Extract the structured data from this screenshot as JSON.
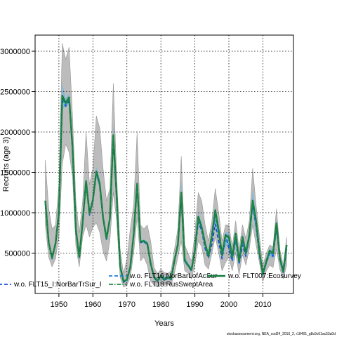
{
  "chart_data": {
    "type": "line",
    "xlabel": "Years",
    "ylabel": "Recruits (age 3)",
    "xlim": [
      1943,
      2019
    ],
    "ylim": [
      0,
      3200000
    ],
    "x_ticks": [
      1950,
      1960,
      1970,
      1980,
      1990,
      2000,
      2010
    ],
    "y_ticks": [
      500000,
      1000000,
      1500000,
      2000000,
      2500000,
      3000000
    ],
    "y_tick_labels": [
      "500000",
      "1000000",
      "1500000",
      "2000000",
      "2500000",
      "3000000"
    ],
    "grid": true,
    "legend_position": "bottom",
    "years": [
      1946,
      1947,
      1948,
      1949,
      1950,
      1951,
      1952,
      1953,
      1954,
      1955,
      1956,
      1957,
      1958,
      1959,
      1960,
      1961,
      1962,
      1963,
      1964,
      1965,
      1966,
      1967,
      1968,
      1969,
      1970,
      1971,
      1972,
      1973,
      1974,
      1975,
      1976,
      1977,
      1978,
      1979,
      1980,
      1981,
      1982,
      1983,
      1984,
      1985,
      1986,
      1987,
      1988,
      1989,
      1990,
      1991,
      1992,
      1993,
      1994,
      1995,
      1996,
      1997,
      1998,
      1999,
      2000,
      2001,
      2002,
      2003,
      2004,
      2005,
      2006,
      2007,
      2008,
      2009,
      2010,
      2011,
      2012,
      2013,
      2014,
      2015,
      2016,
      2017
    ],
    "band_grey": {
      "lower": [
        850000,
        450000,
        330000,
        430000,
        700000,
        1600000,
        1850000,
        1750000,
        1450000,
        580000,
        330000,
        700000,
        850000,
        700000,
        820000,
        870000,
        760000,
        520000,
        400000,
        650000,
        1250000,
        900000,
        200000,
        80000,
        100000,
        200000,
        500000,
        950000,
        400000,
        450000,
        350000,
        150000,
        100000,
        80000,
        120000,
        100000,
        130000,
        100000,
        250000,
        450000,
        650000,
        280000,
        250000,
        180000,
        350000,
        650000,
        580000,
        350000,
        300000,
        500000,
        700000,
        500000,
        280000,
        380000,
        450000,
        280000,
        500000,
        230000,
        480000,
        350000,
        550000,
        850000,
        600000,
        380000,
        150000,
        280000,
        350000,
        320000,
        550000,
        300000,
        180000,
        350000
      ],
      "upper": [
        1650000,
        1050000,
        800000,
        850000,
        1350000,
        3100000,
        2900000,
        3050000,
        2200000,
        1150000,
        750000,
        1150000,
        2000000,
        1350000,
        1550000,
        2200000,
        2050000,
        1550000,
        1150000,
        1300000,
        2600000,
        1450000,
        550000,
        250000,
        420000,
        800000,
        1100000,
        2000000,
        850000,
        800000,
        850000,
        650000,
        320000,
        250000,
        300000,
        260000,
        250000,
        280000,
        550000,
        800000,
        1700000,
        600000,
        500000,
        400000,
        750000,
        1250000,
        1150000,
        850000,
        650000,
        900000,
        1300000,
        1000000,
        650000,
        850000,
        850000,
        580000,
        900000,
        550000,
        850000,
        680000,
        900000,
        1550000,
        1100000,
        700000,
        350000,
        500000,
        600000,
        580000,
        1050000,
        550000,
        350000,
        700000
      ]
    },
    "band_blue": {
      "lower": [
        1100000,
        600000,
        420000,
        600000,
        950000,
        2300000,
        2300000,
        2350000,
        1750000,
        750000,
        420000,
        850000,
        1300000,
        950000,
        1100000,
        1450000,
        1300000,
        900000,
        650000,
        900000,
        1900000,
        1150000,
        320000,
        130000,
        150000,
        300000,
        700000,
        1300000,
        620000,
        620000,
        600000,
        350000,
        180000,
        140000,
        200000,
        150000,
        180000,
        160000,
        380000,
        580000,
        1150000,
        380000,
        330000,
        260000,
        500000,
        870000,
        760000,
        560000,
        420000,
        650000,
        900000,
        680000,
        420000,
        580000,
        600000,
        380000,
        620000,
        330000,
        600000,
        450000,
        650000,
        1000000,
        750000,
        430000,
        200000,
        350000,
        460000,
        430000,
        750000,
        370000,
        230000,
        480000
      ],
      "upper": [
        1200000,
        660000,
        460000,
        640000,
        1050000,
        2600000,
        2420000,
        2480000,
        1870000,
        830000,
        460000,
        930000,
        1450000,
        1030000,
        1190000,
        1570000,
        1430000,
        990000,
        710000,
        980000,
        2070000,
        1250000,
        360000,
        160000,
        190000,
        360000,
        780000,
        1420000,
        660000,
        670000,
        650000,
        400000,
        220000,
        180000,
        240000,
        200000,
        230000,
        200000,
        440000,
        640000,
        1400000,
        460000,
        390000,
        320000,
        580000,
        1000000,
        880000,
        660000,
        520000,
        760000,
        1080000,
        860000,
        540000,
        760000,
        760000,
        500000,
        780000,
        480000,
        750000,
        560000,
        780000,
        1300000,
        980000,
        600000,
        270000,
        440000,
        560000,
        540000,
        920000,
        470000,
        300000,
        620000
      ]
    },
    "series": [
      {
        "name": "w.o. FLT15_I:NorBarTrSur_I",
        "color": "#1a4fd6",
        "dash": "dash",
        "values": [
          1130000,
          620000,
          430000,
          610000,
          980000,
          2380000,
          2320000,
          2390000,
          1790000,
          780000,
          440000,
          880000,
          1360000,
          970000,
          1140000,
          1490000,
          1340000,
          930000,
          670000,
          920000,
          1940000,
          1180000,
          330000,
          140000,
          160000,
          320000,
          720000,
          1340000,
          630000,
          640000,
          610000,
          360000,
          190000,
          150000,
          210000,
          160000,
          190000,
          170000,
          400000,
          600000,
          1200000,
          400000,
          340000,
          280000,
          520000,
          880000,
          780000,
          560000,
          440000,
          610000,
          860000,
          640000,
          430000,
          740000,
          560000,
          400000,
          720000,
          360000,
          600000,
          460000,
          700000,
          1100000,
          840000,
          470000,
          230000,
          380000,
          500000,
          460000,
          820000,
          420000,
          250000,
          550000
        ]
      },
      {
        "name": "w.o. FLT16:NorBarLofAcSur",
        "color": "#1a7fd6",
        "dash": "dash",
        "values": [
          1140000,
          625000,
          440000,
          615000,
          990000,
          2420000,
          2340000,
          2410000,
          1800000,
          785000,
          445000,
          890000,
          1380000,
          980000,
          1150000,
          1500000,
          1350000,
          940000,
          675000,
          925000,
          1950000,
          1190000,
          335000,
          145000,
          165000,
          325000,
          725000,
          1350000,
          635000,
          645000,
          615000,
          365000,
          195000,
          155000,
          215000,
          165000,
          195000,
          175000,
          405000,
          605000,
          1220000,
          405000,
          345000,
          285000,
          530000,
          920000,
          800000,
          590000,
          450000,
          690000,
          960000,
          740000,
          470000,
          650000,
          640000,
          410000,
          650000,
          370000,
          660000,
          480000,
          700000,
          1120000,
          870000,
          490000,
          240000,
          390000,
          510000,
          480000,
          850000,
          430000,
          260000,
          560000
        ]
      },
      {
        "name": "w.o. FLT007:Ecosurvey",
        "color": "#127a3a",
        "dash": "solid",
        "values": [
          1150000,
          630000,
          440000,
          620000,
          1000000,
          2450000,
          2360000,
          2430000,
          1810000,
          790000,
          450000,
          890000,
          1390000,
          990000,
          1160000,
          1510000,
          1360000,
          940000,
          680000,
          930000,
          1960000,
          1200000,
          340000,
          150000,
          170000,
          330000,
          730000,
          1360000,
          640000,
          650000,
          620000,
          370000,
          200000,
          160000,
          220000,
          170000,
          200000,
          180000,
          410000,
          610000,
          1250000,
          410000,
          350000,
          290000,
          540000,
          950000,
          820000,
          620000,
          460000,
          720000,
          1030000,
          780000,
          480000,
          720000,
          700000,
          450000,
          740000,
          400000,
          700000,
          500000,
          720000,
          1150000,
          900000,
          510000,
          240000,
          400000,
          530000,
          500000,
          870000,
          440000,
          270000,
          600000
        ]
      },
      {
        "name": "w.o. FLT18:RusSweptArea",
        "color": "#1f8a4c",
        "dash": "dashdot",
        "values": [
          1145000,
          628000,
          438000,
          618000,
          995000,
          2440000,
          2350000,
          2420000,
          1805000,
          788000,
          448000,
          888000,
          1385000,
          985000,
          1155000,
          1505000,
          1355000,
          938000,
          678000,
          928000,
          1955000,
          1195000,
          338000,
          148000,
          168000,
          328000,
          728000,
          1355000,
          638000,
          648000,
          618000,
          368000,
          198000,
          158000,
          218000,
          168000,
          198000,
          178000,
          408000,
          608000,
          1240000,
          408000,
          348000,
          288000,
          536000,
          940000,
          810000,
          610000,
          455000,
          710000,
          1010000,
          770000,
          475000,
          710000,
          690000,
          445000,
          730000,
          395000,
          690000,
          495000,
          715000,
          1140000,
          890000,
          505000,
          238000,
          398000,
          525000,
          495000,
          865000,
          438000,
          268000,
          595000
        ]
      }
    ],
    "legend": [
      {
        "label": "w.o. FLT15_I:NorBarTrSur_I",
        "color": "#1a4fd6",
        "dash": "dash"
      },
      {
        "label": "w.o. FLT16:NorBarLofAcSur",
        "color": "#1a7fd6",
        "dash": "dash"
      },
      {
        "label": "w.o. FLT007:Ecosurvey",
        "color": "#127a3a",
        "dash": "solid"
      },
      {
        "label": "w.o. FLT18:RusSweptArea",
        "color": "#1f8a4c",
        "dash": "dashdot"
      }
    ],
    "colors": {
      "band_grey": "#b5b5b5",
      "band_blue": "#7fb8d8",
      "band_teal": "#3aa58a"
    }
  },
  "footer": "stockassessment.org, NEA_cod24_2016_2, r18401_g8c9c61ac53a0d"
}
